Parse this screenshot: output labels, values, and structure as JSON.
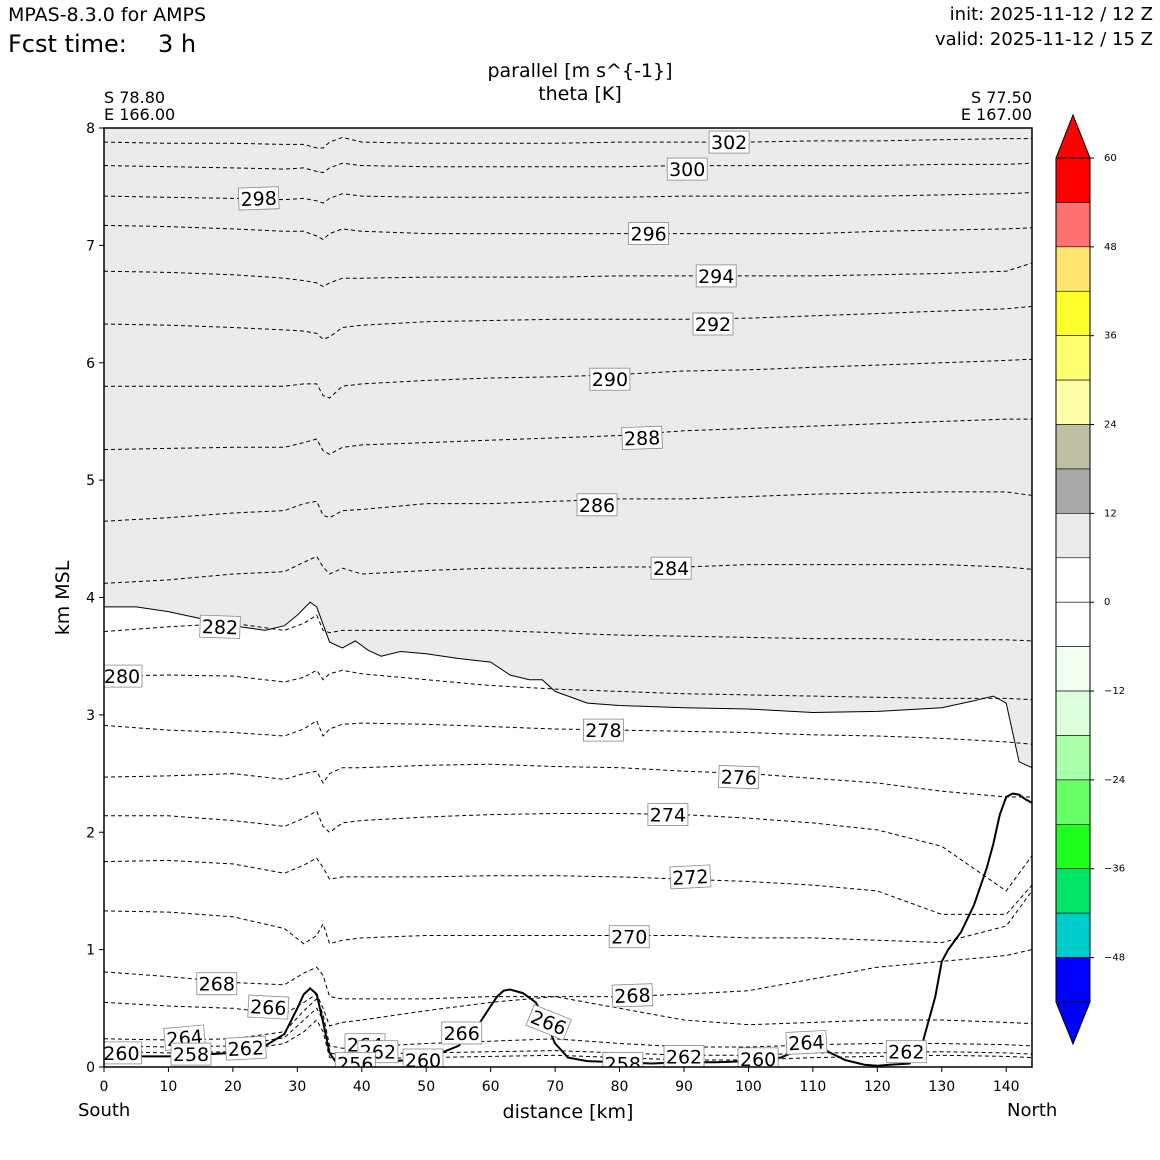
{
  "header": {
    "model": "MPAS-8.3.0 for AMPS",
    "fcst_label": "Fcst time:",
    "fcst_value": "3 h",
    "init": "init: 2025-11-12 / 12 Z",
    "valid": "valid: 2025-11-12 / 15 Z"
  },
  "endpoints": {
    "left_lat": "S 78.80",
    "left_lon": "E 166.00",
    "right_lat": "S 77.50",
    "right_lon": "E 167.00",
    "left_dir": "South",
    "right_dir": "North"
  },
  "chart_data": {
    "type": "contour",
    "title": "parallel [m s^{-1}]",
    "subtitle": "theta [K]",
    "xlabel": "distance [km]",
    "ylabel": "km MSL",
    "xlim": [
      0,
      144
    ],
    "ylim": [
      0,
      8
    ],
    "xticks": [
      0,
      10,
      20,
      30,
      40,
      50,
      60,
      70,
      80,
      90,
      100,
      110,
      120,
      130,
      140
    ],
    "yticks": [
      0,
      1,
      2,
      3,
      4,
      5,
      6,
      7,
      8
    ],
    "fill_color": "#ebebeb",
    "parallel_wind_contour": {
      "x": [
        0,
        5,
        10,
        15,
        20,
        25,
        28,
        30,
        32,
        33,
        35,
        37,
        39,
        41,
        43,
        46,
        50,
        55,
        60,
        63,
        66,
        68,
        70,
        75,
        80,
        90,
        100,
        110,
        120,
        130,
        135,
        138,
        140,
        142,
        144
      ],
      "y": [
        3.92,
        3.92,
        3.88,
        3.82,
        3.76,
        3.72,
        3.76,
        3.85,
        3.96,
        3.92,
        3.62,
        3.57,
        3.63,
        3.55,
        3.5,
        3.54,
        3.52,
        3.48,
        3.45,
        3.34,
        3.3,
        3.3,
        3.2,
        3.1,
        3.08,
        3.06,
        3.05,
        3.02,
        3.03,
        3.06,
        3.12,
        3.16,
        3.1,
        2.6,
        2.55
      ]
    },
    "terrain": {
      "x": [
        0,
        10,
        20,
        25,
        28,
        30,
        31,
        32,
        33,
        34,
        35,
        36,
        38,
        40,
        45,
        50,
        55,
        58,
        60,
        61,
        62,
        63,
        65,
        67,
        68,
        70,
        72,
        75,
        80,
        85,
        90,
        95,
        100,
        105,
        108,
        110,
        112,
        115,
        118,
        120,
        122,
        125,
        127,
        129,
        130,
        131,
        133,
        135,
        137,
        138,
        139,
        140,
        141,
        142,
        143,
        144
      ],
      "y": [
        0.09,
        0.09,
        0.12,
        0.18,
        0.28,
        0.5,
        0.62,
        0.67,
        0.62,
        0.38,
        0.12,
        0.04,
        0.04,
        0.05,
        0.05,
        0.07,
        0.18,
        0.35,
        0.52,
        0.6,
        0.65,
        0.66,
        0.63,
        0.55,
        0.45,
        0.2,
        0.08,
        0.05,
        0.04,
        0.03,
        0.04,
        0.04,
        0.05,
        0.08,
        0.15,
        0.18,
        0.14,
        0.06,
        0.02,
        0.01,
        0.02,
        0.03,
        0.2,
        0.6,
        0.9,
        1.0,
        1.15,
        1.38,
        1.7,
        1.9,
        2.15,
        2.3,
        2.33,
        2.32,
        2.28,
        2.25
      ]
    },
    "theta": {
      "x": [
        0,
        10,
        20,
        28,
        31,
        33,
        34,
        35,
        37,
        40,
        50,
        60,
        70,
        80,
        90,
        100,
        110,
        120,
        130,
        140,
        144
      ],
      "levels": [
        {
          "value": 260,
          "y": [
            0.13,
            0.12,
            0.13,
            0.2,
            0.3,
            0.4,
            0.3,
            0.08,
            0.06,
            0.07,
            0.08,
            0.09,
            0.1,
            0.08,
            0.06,
            0.06,
            0.08,
            0.09,
            0.1,
            0.09,
            0.08
          ]
        },
        {
          "value": 262,
          "y": [
            0.18,
            0.17,
            0.18,
            0.25,
            0.4,
            0.5,
            0.4,
            0.12,
            0.1,
            0.11,
            0.12,
            0.13,
            0.14,
            0.12,
            0.1,
            0.1,
            0.12,
            0.12,
            0.13,
            0.12,
            0.11
          ]
        },
        {
          "value": 264,
          "y": [
            0.24,
            0.23,
            0.24,
            0.3,
            0.48,
            0.58,
            0.45,
            0.18,
            0.16,
            0.17,
            0.2,
            0.22,
            0.24,
            0.2,
            0.17,
            0.17,
            0.19,
            0.2,
            0.2,
            0.19,
            0.18
          ]
        },
        {
          "value": 266,
          "y": [
            0.55,
            0.52,
            0.5,
            0.45,
            0.55,
            0.62,
            0.5,
            0.35,
            0.38,
            0.4,
            0.48,
            0.55,
            0.6,
            0.5,
            0.4,
            0.36,
            0.38,
            0.4,
            0.4,
            0.38,
            0.37
          ]
        },
        {
          "value": 268,
          "y": [
            0.81,
            0.77,
            0.72,
            0.7,
            0.8,
            0.85,
            0.78,
            0.6,
            0.58,
            0.58,
            0.58,
            0.6,
            0.6,
            0.6,
            0.62,
            0.65,
            0.75,
            0.85,
            0.9,
            0.95,
            1.0
          ]
        },
        {
          "value": 270,
          "y": [
            1.33,
            1.32,
            1.28,
            1.18,
            1.05,
            1.12,
            1.22,
            1.05,
            1.08,
            1.1,
            1.12,
            1.12,
            1.12,
            1.12,
            1.12,
            1.1,
            1.1,
            1.08,
            1.06,
            1.2,
            1.5
          ]
        },
        {
          "value": 272,
          "y": [
            1.75,
            1.76,
            1.73,
            1.65,
            1.72,
            1.78,
            1.7,
            1.6,
            1.62,
            1.62,
            1.62,
            1.63,
            1.63,
            1.62,
            1.6,
            1.58,
            1.55,
            1.5,
            1.3,
            1.3,
            1.55
          ]
        },
        {
          "value": 274,
          "y": [
            2.14,
            2.14,
            2.1,
            2.05,
            2.12,
            2.18,
            2.05,
            2.0,
            2.08,
            2.1,
            2.13,
            2.15,
            2.16,
            2.16,
            2.15,
            2.12,
            2.08,
            2.02,
            1.88,
            1.5,
            1.8
          ]
        },
        {
          "value": 276,
          "y": [
            2.47,
            2.48,
            2.5,
            2.45,
            2.5,
            2.52,
            2.42,
            2.5,
            2.55,
            2.55,
            2.57,
            2.58,
            2.56,
            2.55,
            2.52,
            2.5,
            2.46,
            2.42,
            2.35,
            2.3,
            2.3
          ]
        },
        {
          "value": 278,
          "y": [
            2.91,
            2.87,
            2.85,
            2.82,
            2.88,
            2.95,
            2.82,
            2.88,
            2.92,
            2.93,
            2.92,
            2.9,
            2.88,
            2.87,
            2.86,
            2.85,
            2.83,
            2.82,
            2.8,
            2.77,
            2.75
          ]
        },
        {
          "value": 280,
          "y": [
            3.33,
            3.34,
            3.33,
            3.28,
            3.32,
            3.38,
            3.3,
            3.35,
            3.38,
            3.35,
            3.3,
            3.25,
            3.22,
            3.2,
            3.18,
            3.17,
            3.16,
            3.15,
            3.14,
            3.14,
            3.13
          ]
        },
        {
          "value": 282,
          "y": [
            3.71,
            3.75,
            3.78,
            3.72,
            3.78,
            3.85,
            3.72,
            3.7,
            3.72,
            3.72,
            3.72,
            3.72,
            3.7,
            3.68,
            3.67,
            3.66,
            3.65,
            3.65,
            3.64,
            3.64,
            3.63
          ]
        },
        {
          "value": 284,
          "y": [
            4.12,
            4.15,
            4.2,
            4.22,
            4.3,
            4.35,
            4.26,
            4.2,
            4.25,
            4.2,
            4.23,
            4.25,
            4.25,
            4.26,
            4.26,
            4.28,
            4.28,
            4.28,
            4.28,
            4.26,
            4.24
          ]
        },
        {
          "value": 286,
          "y": [
            4.65,
            4.68,
            4.72,
            4.74,
            4.8,
            4.82,
            4.7,
            4.68,
            4.74,
            4.75,
            4.8,
            4.8,
            4.82,
            4.84,
            4.84,
            4.86,
            4.88,
            4.89,
            4.9,
            4.9,
            4.87
          ]
        },
        {
          "value": 288,
          "y": [
            5.26,
            5.27,
            5.28,
            5.28,
            5.32,
            5.35,
            5.25,
            5.22,
            5.28,
            5.3,
            5.32,
            5.34,
            5.36,
            5.38,
            5.42,
            5.44,
            5.46,
            5.48,
            5.5,
            5.52,
            5.52
          ]
        },
        {
          "value": 290,
          "y": [
            5.8,
            5.8,
            5.8,
            5.8,
            5.82,
            5.82,
            5.72,
            5.7,
            5.8,
            5.82,
            5.85,
            5.87,
            5.88,
            5.9,
            5.93,
            5.94,
            5.96,
            5.98,
            6.0,
            6.02,
            6.03
          ]
        },
        {
          "value": 292,
          "y": [
            6.33,
            6.32,
            6.3,
            6.28,
            6.27,
            6.25,
            6.2,
            6.22,
            6.3,
            6.32,
            6.35,
            6.36,
            6.37,
            6.37,
            6.37,
            6.38,
            6.4,
            6.42,
            6.44,
            6.46,
            6.48
          ]
        },
        {
          "value": 294,
          "y": [
            6.78,
            6.77,
            6.75,
            6.72,
            6.7,
            6.68,
            6.65,
            6.68,
            6.72,
            6.72,
            6.73,
            6.73,
            6.73,
            6.74,
            6.74,
            6.74,
            6.74,
            6.75,
            6.76,
            6.78,
            6.85
          ]
        },
        {
          "value": 296,
          "y": [
            7.17,
            7.16,
            7.14,
            7.12,
            7.12,
            7.08,
            7.05,
            7.1,
            7.14,
            7.12,
            7.1,
            7.1,
            7.1,
            7.1,
            7.1,
            7.1,
            7.1,
            7.12,
            7.13,
            7.14,
            7.15
          ]
        },
        {
          "value": 298,
          "y": [
            7.42,
            7.41,
            7.4,
            7.39,
            7.4,
            7.38,
            7.36,
            7.4,
            7.44,
            7.42,
            7.41,
            7.41,
            7.41,
            7.41,
            7.42,
            7.42,
            7.42,
            7.42,
            7.43,
            7.44,
            7.45
          ]
        },
        {
          "value": 300,
          "y": [
            7.68,
            7.67,
            7.66,
            7.65,
            7.66,
            7.63,
            7.62,
            7.66,
            7.7,
            7.68,
            7.67,
            7.67,
            7.67,
            7.67,
            7.68,
            7.68,
            7.68,
            7.68,
            7.69,
            7.69,
            7.7
          ]
        },
        {
          "value": 302,
          "y": [
            7.88,
            7.87,
            7.87,
            7.86,
            7.86,
            7.83,
            7.83,
            7.88,
            7.92,
            7.88,
            7.87,
            7.87,
            7.87,
            7.88,
            7.88,
            7.88,
            7.89,
            7.89,
            7.9,
            7.91,
            7.91
          ]
        }
      ],
      "labels": [
        {
          "text": "302",
          "x": 97,
          "y": 7.88,
          "rot": 0
        },
        {
          "text": "300",
          "x": 90.5,
          "y": 7.65,
          "rot": 0
        },
        {
          "text": "298",
          "x": 24,
          "y": 7.4,
          "rot": -2
        },
        {
          "text": "296",
          "x": 84.5,
          "y": 7.1,
          "rot": 0
        },
        {
          "text": "294",
          "x": 95,
          "y": 6.74,
          "rot": 0
        },
        {
          "text": "292",
          "x": 94.5,
          "y": 6.33,
          "rot": 0
        },
        {
          "text": "290",
          "x": 78.5,
          "y": 5.86,
          "rot": 0
        },
        {
          "text": "288",
          "x": 83.5,
          "y": 5.36,
          "rot": -2
        },
        {
          "text": "286",
          "x": 76.5,
          "y": 4.79,
          "rot": 0
        },
        {
          "text": "284",
          "x": 88,
          "y": 4.25,
          "rot": 0
        },
        {
          "text": "282",
          "x": 18,
          "y": 3.75,
          "rot": 2
        },
        {
          "text": "280",
          "x": 2.8,
          "y": 3.33,
          "rot": 0
        },
        {
          "text": "278",
          "x": 77.5,
          "y": 2.87,
          "rot": 0
        },
        {
          "text": "276",
          "x": 98.5,
          "y": 2.47,
          "rot": 2
        },
        {
          "text": "274",
          "x": 87.5,
          "y": 2.15,
          "rot": 0
        },
        {
          "text": "272",
          "x": 91,
          "y": 1.62,
          "rot": -3
        },
        {
          "text": "270",
          "x": 81.5,
          "y": 1.11,
          "rot": 0
        },
        {
          "text": "268",
          "x": 17.5,
          "y": 0.71,
          "rot": 0
        },
        {
          "text": "268",
          "x": 82,
          "y": 0.61,
          "rot": -2
        },
        {
          "text": "266",
          "x": 25.5,
          "y": 0.51,
          "rot": 3
        },
        {
          "text": "266",
          "x": 55.5,
          "y": 0.29,
          "rot": 0
        },
        {
          "text": "266",
          "x": 69,
          "y": 0.38,
          "rot": 22
        },
        {
          "text": "264",
          "x": 12.5,
          "y": 0.25,
          "rot": -5
        },
        {
          "text": "264",
          "x": 40.5,
          "y": 0.19,
          "rot": 0
        },
        {
          "text": "264",
          "x": 109,
          "y": 0.21,
          "rot": -3
        },
        {
          "text": "262",
          "x": 22,
          "y": 0.16,
          "rot": -3
        },
        {
          "text": "262",
          "x": 42.5,
          "y": 0.13,
          "rot": 0
        },
        {
          "text": "262",
          "x": 90,
          "y": 0.09,
          "rot": 0
        },
        {
          "text": "262",
          "x": 124.5,
          "y": 0.13,
          "rot": 0
        },
        {
          "text": "260",
          "x": 2.7,
          "y": 0.12,
          "rot": 0
        },
        {
          "text": "260",
          "x": 49.5,
          "y": 0.06,
          "rot": 0
        },
        {
          "text": "260",
          "x": 101.5,
          "y": 0.07,
          "rot": 0
        },
        {
          "text": "258",
          "x": 13.5,
          "y": 0.11,
          "rot": 0
        },
        {
          "text": "258",
          "x": 80.5,
          "y": 0.03,
          "rot": 0
        },
        {
          "text": "256",
          "x": 39,
          "y": 0.03,
          "rot": 0
        }
      ]
    },
    "colorbar": {
      "ticks": [
        60,
        48,
        36,
        24,
        12,
        0,
        -12,
        -24,
        -36,
        -48
      ],
      "tick_labels": [
        "60",
        "48",
        "36",
        "24",
        "12",
        "0",
        "−12",
        "−24",
        "−36",
        "−48"
      ],
      "levels": [
        60,
        54,
        48,
        42,
        36,
        30,
        24,
        18,
        12,
        6,
        0,
        -6,
        -12,
        -18,
        -24,
        -30,
        -36,
        -42,
        -48,
        -54
      ],
      "colors": [
        "#ff0000",
        "#ff0000",
        "#ff7070",
        "#ffe56f",
        "#ffff2e",
        "#ffff70",
        "#ffffaa",
        "#bfbfa4",
        "#a9a9a9",
        "#ebebeb",
        "#ffffff",
        "#ffffff",
        "#f1fff1",
        "#dcffdc",
        "#aaffaa",
        "#66ff66",
        "#1eff1e",
        "#00e565",
        "#00cccc",
        "#0000ff",
        "#0000ff"
      ]
    }
  }
}
